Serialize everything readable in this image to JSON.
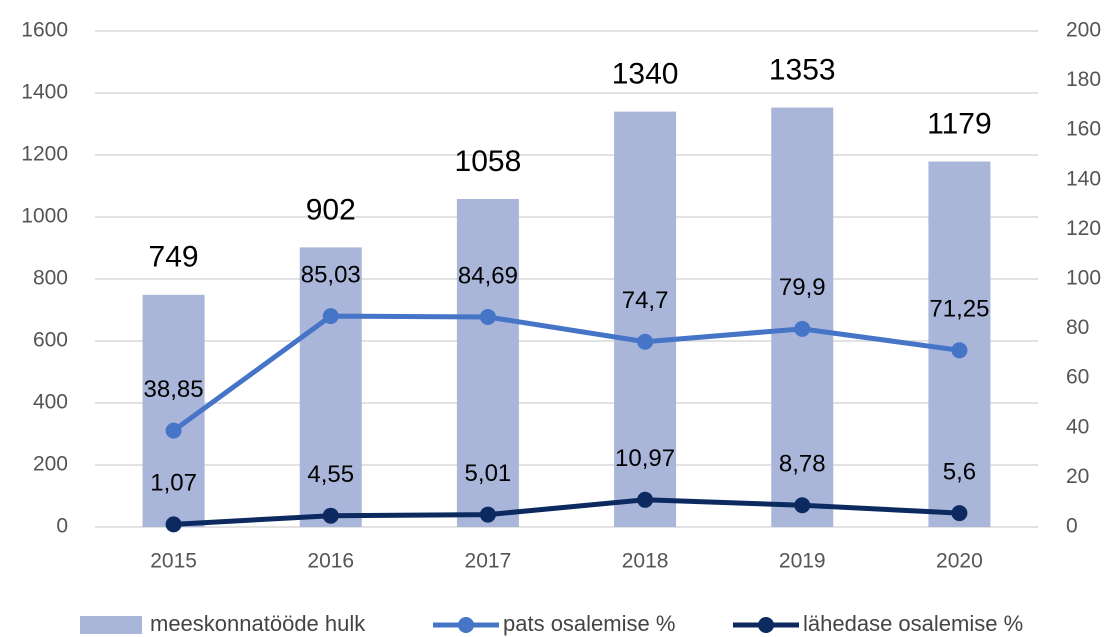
{
  "chart_data": {
    "type": "bar_line",
    "categories": [
      "2015",
      "2016",
      "2017",
      "2018",
      "2019",
      "2020"
    ],
    "series": [
      {
        "name": "meeskonnatööde hulk",
        "type": "bar",
        "color": "#a9b6da",
        "axis": "y",
        "values": [
          749,
          902,
          1058,
          1340,
          1353,
          1179
        ]
      },
      {
        "name": "pats osalemise %",
        "type": "line",
        "color": "#4675c8",
        "axis": "y2",
        "values": [
          38.85,
          85.03,
          84.69,
          74.7,
          79.9,
          71.25
        ],
        "value_labels": [
          "38,85",
          "85,03",
          "84,69",
          "74,7",
          "79,9",
          "71,25"
        ]
      },
      {
        "name": "lähedase osalemise %",
        "type": "line",
        "color": "#0c2a5f",
        "axis": "y2",
        "values": [
          1.07,
          4.55,
          5.01,
          10.97,
          8.78,
          5.6
        ],
        "value_labels": [
          "1,07",
          "4,55",
          "5,01",
          "10,97",
          "8,78",
          "5,6"
        ]
      }
    ],
    "ylim": [
      0,
      1600
    ],
    "yticks": [
      0,
      200,
      400,
      600,
      800,
      1000,
      1200,
      1400,
      1600
    ],
    "y2lim": [
      0,
      200
    ],
    "y2ticks": [
      0,
      20,
      40,
      60,
      80,
      100,
      120,
      140,
      160,
      180,
      200
    ],
    "grid": true,
    "legend": "bottom"
  }
}
